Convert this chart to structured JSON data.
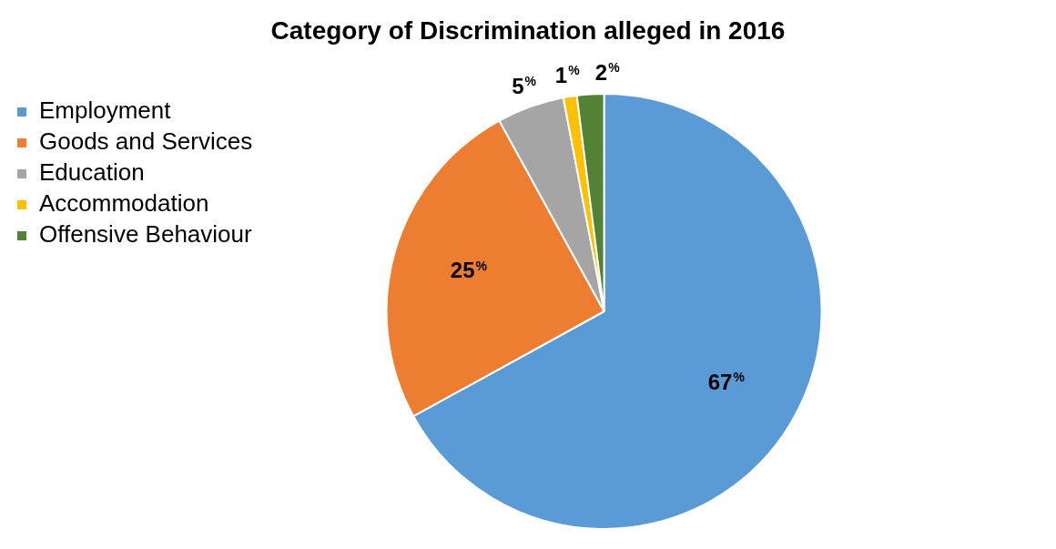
{
  "chart_data": {
    "type": "pie",
    "title": "Category of Discrimination alleged in 2016",
    "categories": [
      "Employment",
      "Goods and Services",
      "Education",
      "Accommodation",
      "Offensive Behaviour"
    ],
    "values": [
      67,
      25,
      5,
      1,
      2
    ],
    "colors": [
      "#5b9bd5",
      "#ed7d31",
      "#a5a5a5",
      "#ffc000",
      "#548235"
    ],
    "value_labels": [
      "67%",
      "25%",
      "5%",
      "1%",
      "2%"
    ],
    "legend": "top left"
  }
}
